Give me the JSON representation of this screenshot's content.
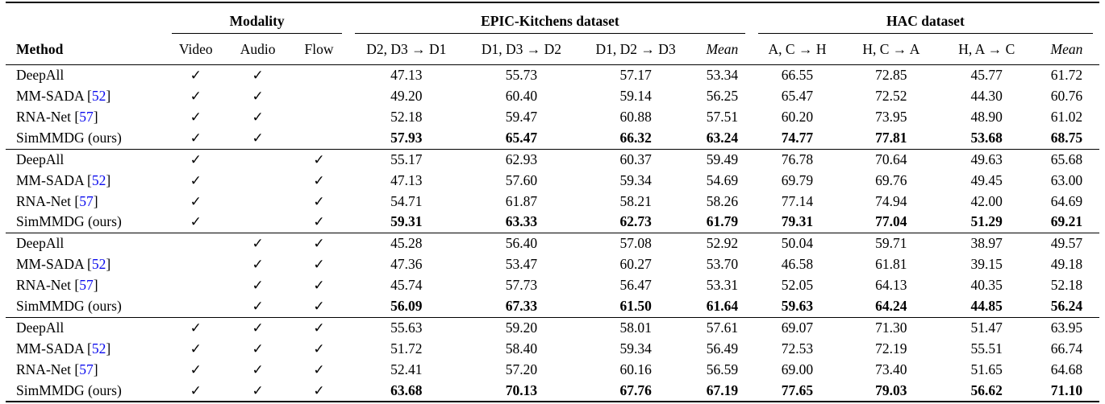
{
  "table": {
    "check_glyph": "✓",
    "citation_color": "#0b0bee",
    "groups": {
      "modality": "Modality",
      "epic": "EPIC-Kitchens dataset",
      "hac": "HAC dataset"
    },
    "columns": [
      {
        "label": "Method",
        "emph": false
      },
      {
        "label": "Video",
        "emph": false
      },
      {
        "label": "Audio",
        "emph": false
      },
      {
        "label": "Flow",
        "emph": false
      },
      {
        "label": "D2, D3 → D1",
        "emph": false
      },
      {
        "label": "D1, D3 → D2",
        "emph": false
      },
      {
        "label": "D1, D2 → D3",
        "emph": false
      },
      {
        "label": "Mean",
        "emph": true
      },
      {
        "label": "A, C → H",
        "emph": false
      },
      {
        "label": "H, C → A",
        "emph": false
      },
      {
        "label": "H, A → C",
        "emph": false
      },
      {
        "label": "Mean",
        "emph": true
      }
    ],
    "blocks": [
      {
        "rows": [
          {
            "method": "DeepAll",
            "cite": null,
            "checks": [
              true,
              true,
              false
            ],
            "bold": false,
            "values": [
              "47.13",
              "55.73",
              "57.17",
              "53.34",
              "66.55",
              "72.85",
              "45.77",
              "61.72"
            ]
          },
          {
            "method": "MM-SADA",
            "cite": "52",
            "checks": [
              true,
              true,
              false
            ],
            "bold": false,
            "values": [
              "49.20",
              "60.40",
              "59.14",
              "56.25",
              "65.47",
              "72.52",
              "44.30",
              "60.76"
            ]
          },
          {
            "method": "RNA-Net",
            "cite": "57",
            "checks": [
              true,
              true,
              false
            ],
            "bold": false,
            "values": [
              "52.18",
              "59.47",
              "60.88",
              "57.51",
              "60.20",
              "73.95",
              "48.90",
              "61.02"
            ]
          },
          {
            "method": "SimMMDG (ours)",
            "cite": null,
            "checks": [
              true,
              true,
              false
            ],
            "bold": true,
            "values": [
              "57.93",
              "65.47",
              "66.32",
              "63.24",
              "74.77",
              "77.81",
              "53.68",
              "68.75"
            ]
          }
        ]
      },
      {
        "rows": [
          {
            "method": "DeepAll",
            "cite": null,
            "checks": [
              true,
              false,
              true
            ],
            "bold": false,
            "values": [
              "55.17",
              "62.93",
              "60.37",
              "59.49",
              "76.78",
              "70.64",
              "49.63",
              "65.68"
            ]
          },
          {
            "method": "MM-SADA",
            "cite": "52",
            "checks": [
              true,
              false,
              true
            ],
            "bold": false,
            "values": [
              "47.13",
              "57.60",
              "59.34",
              "54.69",
              "69.79",
              "69.76",
              "49.45",
              "63.00"
            ]
          },
          {
            "method": "RNA-Net",
            "cite": "57",
            "checks": [
              true,
              false,
              true
            ],
            "bold": false,
            "values": [
              "54.71",
              "61.87",
              "58.21",
              "58.26",
              "77.14",
              "74.94",
              "42.00",
              "64.69"
            ]
          },
          {
            "method": "SimMMDG (ours)",
            "cite": null,
            "checks": [
              true,
              false,
              true
            ],
            "bold": true,
            "values": [
              "59.31",
              "63.33",
              "62.73",
              "61.79",
              "79.31",
              "77.04",
              "51.29",
              "69.21"
            ]
          }
        ]
      },
      {
        "rows": [
          {
            "method": "DeepAll",
            "cite": null,
            "checks": [
              false,
              true,
              true
            ],
            "bold": false,
            "values": [
              "45.28",
              "56.40",
              "57.08",
              "52.92",
              "50.04",
              "59.71",
              "38.97",
              "49.57"
            ]
          },
          {
            "method": "MM-SADA",
            "cite": "52",
            "checks": [
              false,
              true,
              true
            ],
            "bold": false,
            "values": [
              "47.36",
              "53.47",
              "60.27",
              "53.70",
              "46.58",
              "61.81",
              "39.15",
              "49.18"
            ]
          },
          {
            "method": "RNA-Net",
            "cite": "57",
            "checks": [
              false,
              true,
              true
            ],
            "bold": false,
            "values": [
              "45.74",
              "57.73",
              "56.47",
              "53.31",
              "52.05",
              "64.13",
              "40.35",
              "52.18"
            ]
          },
          {
            "method": "SimMMDG (ours)",
            "cite": null,
            "checks": [
              false,
              true,
              true
            ],
            "bold": true,
            "values": [
              "56.09",
              "67.33",
              "61.50",
              "61.64",
              "59.63",
              "64.24",
              "44.85",
              "56.24"
            ]
          }
        ]
      },
      {
        "rows": [
          {
            "method": "DeepAll",
            "cite": null,
            "checks": [
              true,
              true,
              true
            ],
            "bold": false,
            "values": [
              "55.63",
              "59.20",
              "58.01",
              "57.61",
              "69.07",
              "71.30",
              "51.47",
              "63.95"
            ]
          },
          {
            "method": "MM-SADA",
            "cite": "52",
            "checks": [
              true,
              true,
              true
            ],
            "bold": false,
            "values": [
              "51.72",
              "58.40",
              "59.34",
              "56.49",
              "72.53",
              "72.19",
              "55.51",
              "66.74"
            ]
          },
          {
            "method": "RNA-Net",
            "cite": "57",
            "checks": [
              true,
              true,
              true
            ],
            "bold": false,
            "values": [
              "52.41",
              "57.20",
              "60.16",
              "56.59",
              "69.00",
              "73.40",
              "51.65",
              "64.68"
            ]
          },
          {
            "method": "SimMMDG (ours)",
            "cite": null,
            "checks": [
              true,
              true,
              true
            ],
            "bold": true,
            "values": [
              "63.68",
              "70.13",
              "67.76",
              "67.19",
              "77.65",
              "79.03",
              "56.62",
              "71.10"
            ]
          }
        ]
      }
    ]
  }
}
